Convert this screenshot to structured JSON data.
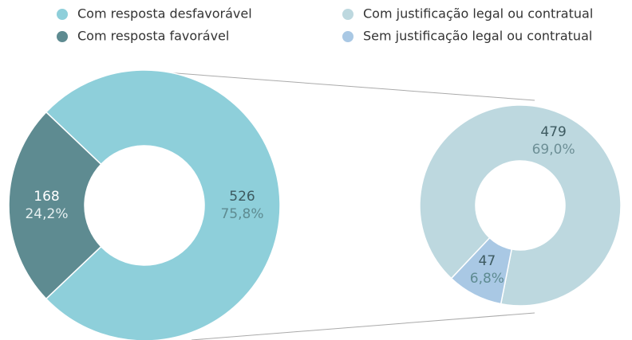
{
  "chart_data": [
    {
      "type": "donut",
      "categories": [
        "Com resposta desfavorável",
        "Com resposta favorável"
      ],
      "values": [
        526,
        168
      ],
      "percents": [
        75.8,
        24.2
      ],
      "percent_labels": [
        "75,8%",
        "24,2%"
      ],
      "colors": [
        "#8ecfda",
        "#5e8b91"
      ]
    },
    {
      "type": "donut",
      "categories": [
        "Com justificação legal ou contratual",
        "Sem justificação legal ou contratual"
      ],
      "values": [
        479,
        47
      ],
      "percents": [
        69.0,
        6.8
      ],
      "percent_labels": [
        "69,0%",
        "6,8%"
      ],
      "colors": [
        "#bdd8df",
        "#a9c8e4"
      ]
    }
  ]
}
